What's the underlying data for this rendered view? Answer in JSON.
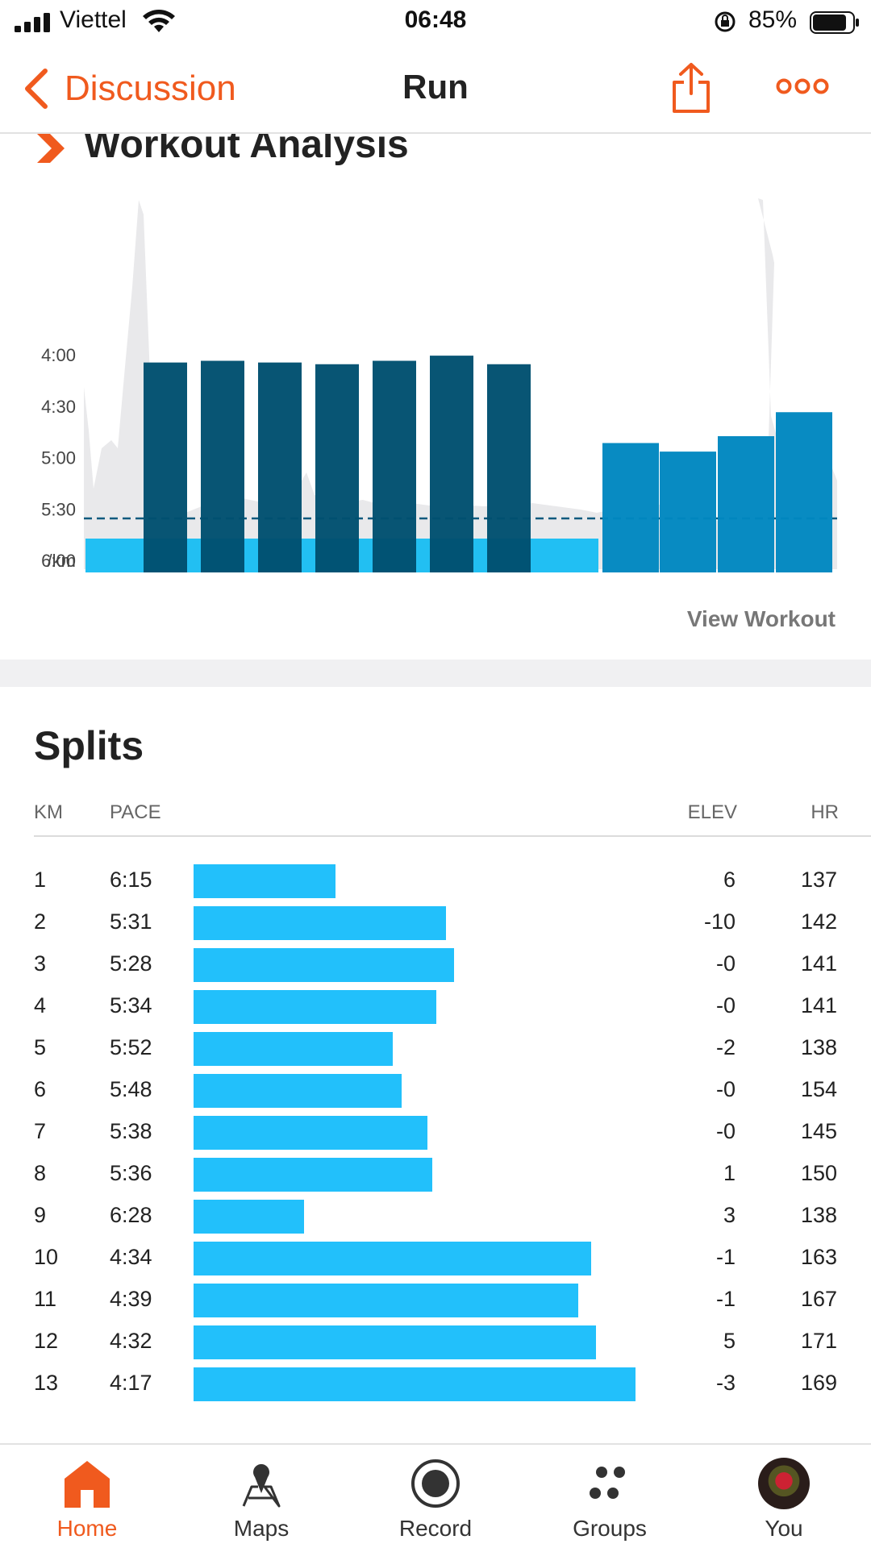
{
  "status_bar": {
    "carrier": "Viettel",
    "time": "06:48",
    "battery_percent": "85%",
    "battery_level": 0.85,
    "signal_bars": 4
  },
  "nav": {
    "back_label": "Discussion",
    "title": "Run",
    "back_icon": "chevron-left-icon",
    "share_icon": "share-icon",
    "more_icon": "more-icon"
  },
  "analysis": {
    "title": "Workout Analysis",
    "view_workout_label": "View Workout",
    "accent_color": "#f05a1e"
  },
  "chart_data": {
    "type": "bar",
    "y_axis_ticks": [
      "4:00",
      "4:30",
      "5:00",
      "5:30",
      "6:00",
      "/km"
    ],
    "y_tick_seconds": [
      240,
      270,
      300,
      330,
      360
    ],
    "ylim_seconds_per_km": [
      360,
      200
    ],
    "average_pace_seconds": 336,
    "series": [
      {
        "values_seconds_per_km": [
          375,
          245,
          244,
          245,
          246,
          244,
          241,
          246,
          376,
          292,
          297,
          288,
          274
        ],
        "kind": [
          "rest",
          "work",
          "work",
          "work",
          "work",
          "work",
          "work",
          "work",
          "rest",
          "work",
          "work",
          "work",
          "work"
        ]
      }
    ],
    "colors": {
      "work_dark": "#00506f",
      "work_light": "#0087c0",
      "rest": "#22bff2",
      "elevation": "#e8e8ea",
      "average_line": "#0d5a7e"
    }
  },
  "splits": {
    "title": "Splits",
    "headers": {
      "km": "KM",
      "pace": "PACE",
      "elev": "ELEV",
      "hr": "HR"
    },
    "rows": [
      {
        "km": "1",
        "pace": "6:15",
        "elev": "6",
        "hr": "137",
        "speed": 0.321
      },
      {
        "km": "2",
        "pace": "5:31",
        "elev": "-10",
        "hr": "142",
        "speed": 0.571
      },
      {
        "km": "3",
        "pace": "5:28",
        "elev": "-0",
        "hr": "141",
        "speed": 0.59
      },
      {
        "km": "4",
        "pace": "5:34",
        "elev": "-0",
        "hr": "141",
        "speed": 0.55
      },
      {
        "km": "5",
        "pace": "5:52",
        "elev": "-2",
        "hr": "138",
        "speed": 0.45
      },
      {
        "km": "6",
        "pace": "5:48",
        "elev": "-0",
        "hr": "154",
        "speed": 0.47
      },
      {
        "km": "7",
        "pace": "5:38",
        "elev": "-0",
        "hr": "145",
        "speed": 0.53
      },
      {
        "km": "8",
        "pace": "5:36",
        "elev": "1",
        "hr": "150",
        "speed": 0.54
      },
      {
        "km": "9",
        "pace": "6:28",
        "elev": "3",
        "hr": "138",
        "speed": 0.25
      },
      {
        "km": "10",
        "pace": "4:34",
        "elev": "-1",
        "hr": "163",
        "speed": 0.9
      },
      {
        "km": "11",
        "pace": "4:39",
        "elev": "-1",
        "hr": "167",
        "speed": 0.87
      },
      {
        "km": "12",
        "pace": "4:32",
        "elev": "5",
        "hr": "171",
        "speed": 0.91
      },
      {
        "km": "13",
        "pace": "4:17",
        "elev": "-3",
        "hr": "169",
        "speed": 1.0
      }
    ],
    "bar_color": "#22c0fb"
  },
  "tab_bar": {
    "tabs": [
      {
        "label": "Home",
        "icon": "home-icon",
        "active": true
      },
      {
        "label": "Maps",
        "icon": "map-pin-icon",
        "active": false
      },
      {
        "label": "Record",
        "icon": "record-icon",
        "active": false
      },
      {
        "label": "Groups",
        "icon": "groups-icon",
        "active": false
      },
      {
        "label": "You",
        "icon": "avatar",
        "active": false
      }
    ]
  }
}
